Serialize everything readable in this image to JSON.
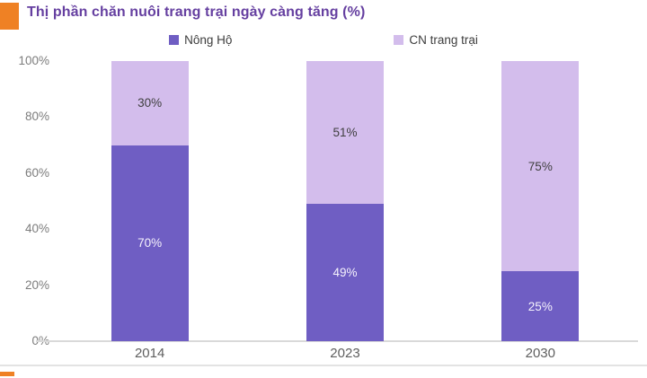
{
  "chart_data": {
    "type": "bar",
    "stacked": true,
    "title": "Thị phần chăn nuôi trang trại ngày càng tăng (%)",
    "categories": [
      "2014",
      "2023",
      "2030"
    ],
    "series": [
      {
        "name": "Nông Hộ",
        "color": "#6F5EC3",
        "values": [
          70,
          49,
          25
        ],
        "data_labels": [
          "70%",
          "49%",
          "25%"
        ]
      },
      {
        "name": "CN trang trại",
        "color": "#D3BDEC",
        "values": [
          30,
          51,
          75
        ],
        "data_labels": [
          "30%",
          "51%",
          "75%"
        ]
      }
    ],
    "ylim": [
      0,
      100
    ],
    "yticks": [
      "0%",
      "20%",
      "40%",
      "60%",
      "80%",
      "100%"
    ],
    "grid": false,
    "legend_position": "top-center"
  },
  "style": {
    "accent_color": "#EF8124",
    "title_color": "#653FA0",
    "axis_line_color": "#D9D9D9",
    "tick_text_color": "#7C7C7C",
    "category_text_color": "#5E5E5E",
    "legend_text_color": "#3C3C3C",
    "label_on_dark_color": "#F5F2FC",
    "label_on_light_color": "#3F3F3F"
  }
}
